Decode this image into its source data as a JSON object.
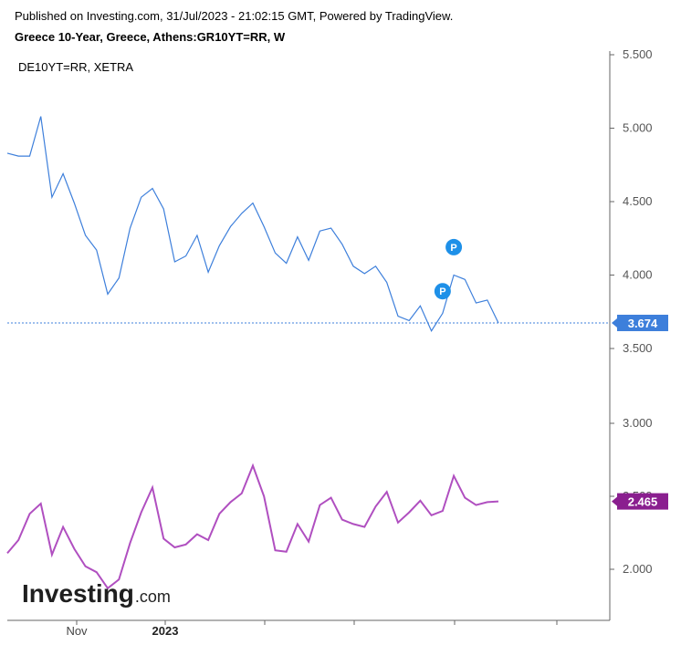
{
  "header": {
    "published": "Published on Investing.com, 31/Jul/2023 - 21:02:15 GMT, Powered by TradingView.",
    "title": "Greece 10-Year, Greece, Athens:GR10YT=RR, W",
    "legend": "DE10YT=RR, XETRA"
  },
  "logo": {
    "main": "Investing",
    "suffix": ".com"
  },
  "colors": {
    "greece_line": "#3d7fdb",
    "germany_line": "#b04fc0",
    "greece_badge": "#3d7fdb",
    "germany_badge": "#8a1f8f",
    "marker": "#1e90e8"
  },
  "chart_data": {
    "type": "line",
    "x_ticks": [
      {
        "label": "Nov",
        "bold": false
      },
      {
        "label": "2023",
        "bold": true
      },
      {
        "label": "",
        "bold": false
      },
      {
        "label": "",
        "bold": false
      },
      {
        "label": "",
        "bold": false
      },
      {
        "label": "",
        "bold": false
      }
    ],
    "y_ticks": [
      "5.500",
      "5.000",
      "4.500",
      "4.000",
      "3.500",
      "3.000",
      "2.500",
      "2.000"
    ],
    "series": [
      {
        "key": "greece",
        "values": [
          4.83,
          4.81,
          4.81,
          5.08,
          4.53,
          4.69,
          4.49,
          4.27,
          4.17,
          3.87,
          3.98,
          4.32,
          4.53,
          4.59,
          4.45,
          4.09,
          4.13,
          4.27,
          4.02,
          4.2,
          4.33,
          4.42,
          4.49,
          4.33,
          4.15,
          4.08,
          4.26,
          4.1,
          4.3,
          4.32,
          4.21,
          4.06,
          4.01,
          4.06,
          3.95,
          3.72,
          3.69,
          3.79,
          3.62,
          3.74,
          4.0,
          3.97,
          3.81,
          3.83,
          3.674
        ],
        "last_value": "3.674"
      },
      {
        "key": "germany",
        "values": [
          2.11,
          2.2,
          2.38,
          2.45,
          2.1,
          2.29,
          2.14,
          2.02,
          1.98,
          1.87,
          1.93,
          2.18,
          2.39,
          2.56,
          2.21,
          2.15,
          2.17,
          2.24,
          2.2,
          2.38,
          2.46,
          2.52,
          2.71,
          2.5,
          2.13,
          2.12,
          2.31,
          2.19,
          2.44,
          2.49,
          2.34,
          2.31,
          2.29,
          2.43,
          2.53,
          2.32,
          2.39,
          2.47,
          2.37,
          2.4,
          2.64,
          2.49,
          2.44,
          2.46,
          2.465
        ],
        "last_value": "2.465"
      }
    ],
    "markers": [
      {
        "label": "P",
        "index": 40,
        "value": 4.19
      },
      {
        "label": "P",
        "index": 39,
        "value": 3.89
      }
    ],
    "ylim_top_section": [
      3.5,
      5.5
    ],
    "ylim_bottom_section": [
      1.75,
      3.0
    ],
    "grid": false
  }
}
